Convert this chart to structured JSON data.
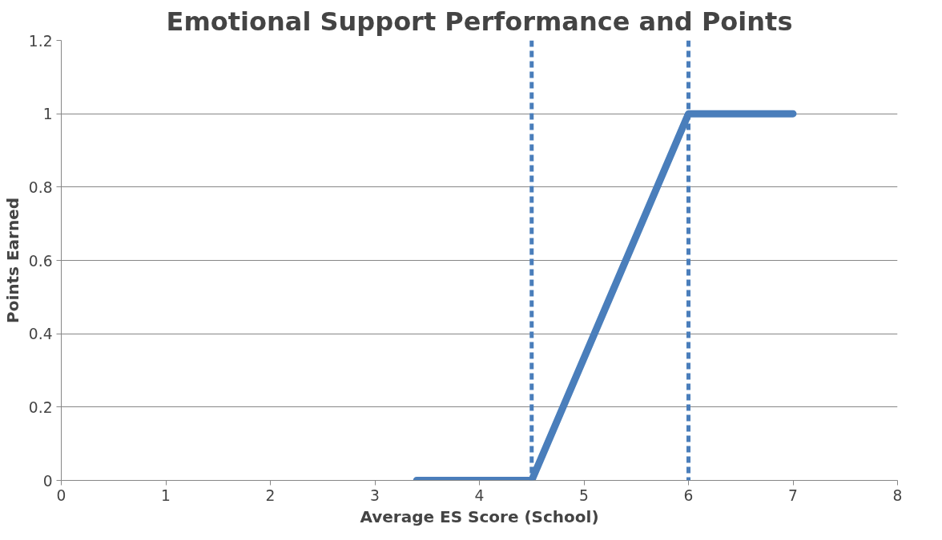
{
  "chart_data": {
    "type": "line",
    "title": "Emotional Support Performance and Points",
    "xlabel": "Average ES Score (School)",
    "ylabel": "Points Earned",
    "x": [
      3.4,
      4.5,
      6,
      7
    ],
    "series": [
      {
        "color": "#4a7ebb",
        "values": [
          0,
          0,
          1,
          1
        ]
      }
    ],
    "xlim": [
      0,
      8
    ],
    "xticks": [
      0,
      1,
      2,
      3,
      4,
      5,
      6,
      7,
      8
    ],
    "ylim": [
      0,
      1.2
    ],
    "yticks": [
      0,
      {
        "value": 0.2,
        "label": "0.2"
      },
      {
        "value": 0.4,
        "label": "0.4"
      },
      {
        "value": 0.6,
        "label": "0.6"
      },
      {
        "value": 0.8,
        "label": "0.8"
      },
      1,
      {
        "value": 1.2,
        "label": "1.2"
      }
    ],
    "grid": "y",
    "marker": "none",
    "line_style": "solid",
    "ref_lines": [
      {
        "axis": "x",
        "value": 4.5,
        "color": "#4a7ebb",
        "line_style": "dashed"
      },
      {
        "axis": "x",
        "value": 6,
        "color": "#4a7ebb",
        "line_style": "dashed"
      }
    ]
  }
}
